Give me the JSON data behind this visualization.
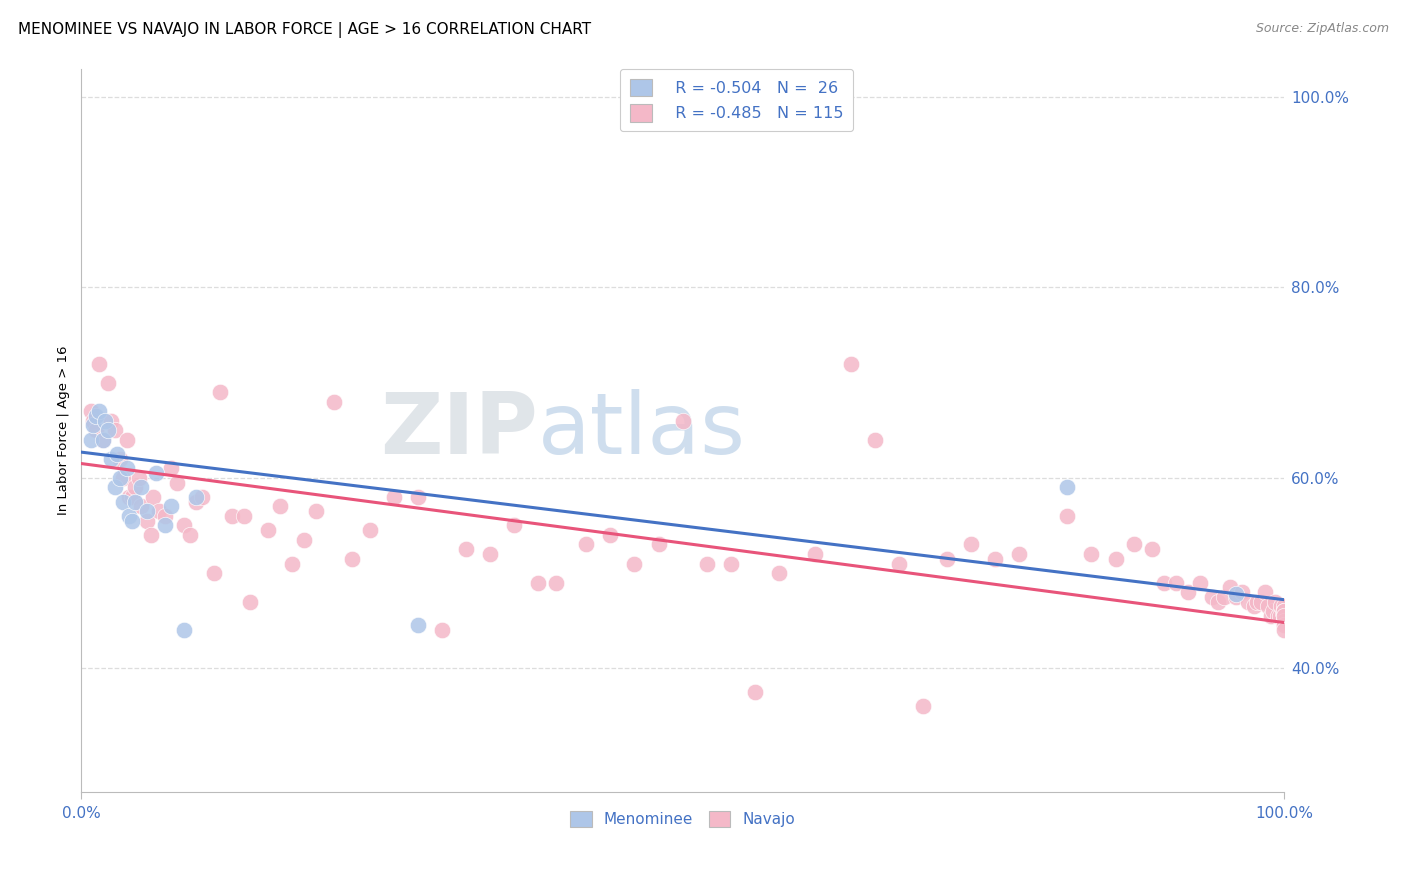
{
  "title": "MENOMINEE VS NAVAJO IN LABOR FORCE | AGE > 16 CORRELATION CHART",
  "source": "Source: ZipAtlas.com",
  "ylabel": "In Labor Force | Age > 16",
  "xlim": [
    0,
    1
  ],
  "ylim": [
    0.27,
    1.03
  ],
  "yticks": [
    0.4,
    0.6,
    0.8,
    1.0
  ],
  "ytick_labels": [
    "40.0%",
    "60.0%",
    "80.0%",
    "100.0%"
  ],
  "xtick_labels": [
    "0.0%",
    "100.0%"
  ],
  "legend_r_menominee": "R = -0.504",
  "legend_n_menominee": "N =  26",
  "legend_r_navajo": "R = -0.485",
  "legend_n_navajo": "N = 115",
  "menominee_color": "#aec6e8",
  "navajo_color": "#f4b8c8",
  "line_menominee_color": "#4472c4",
  "line_navajo_color": "#e8547a",
  "background_color": "#ffffff",
  "grid_color": "#dddddd",
  "tick_label_color": "#4472c4",
  "menominee_x": [
    0.008,
    0.01,
    0.012,
    0.015,
    0.018,
    0.02,
    0.022,
    0.025,
    0.028,
    0.03,
    0.032,
    0.035,
    0.038,
    0.04,
    0.042,
    0.045,
    0.05,
    0.055,
    0.062,
    0.07,
    0.075,
    0.085,
    0.095,
    0.28,
    0.82,
    0.96
  ],
  "menominee_y": [
    0.64,
    0.655,
    0.665,
    0.67,
    0.64,
    0.66,
    0.65,
    0.62,
    0.59,
    0.625,
    0.6,
    0.575,
    0.61,
    0.56,
    0.555,
    0.575,
    0.59,
    0.565,
    0.605,
    0.55,
    0.57,
    0.44,
    0.58,
    0.445,
    0.59,
    0.478
  ],
  "navajo_x": [
    0.008,
    0.01,
    0.012,
    0.015,
    0.018,
    0.022,
    0.025,
    0.028,
    0.032,
    0.035,
    0.038,
    0.04,
    0.042,
    0.045,
    0.048,
    0.05,
    0.055,
    0.058,
    0.06,
    0.065,
    0.07,
    0.075,
    0.08,
    0.085,
    0.09,
    0.095,
    0.1,
    0.11,
    0.115,
    0.125,
    0.135,
    0.14,
    0.155,
    0.165,
    0.175,
    0.185,
    0.195,
    0.21,
    0.225,
    0.24,
    0.26,
    0.28,
    0.3,
    0.32,
    0.34,
    0.36,
    0.38,
    0.395,
    0.42,
    0.44,
    0.46,
    0.48,
    0.5,
    0.52,
    0.54,
    0.56,
    0.58,
    0.61,
    0.64,
    0.66,
    0.68,
    0.7,
    0.72,
    0.74,
    0.76,
    0.78,
    0.82,
    0.84,
    0.86,
    0.875,
    0.89,
    0.9,
    0.91,
    0.92,
    0.93,
    0.94,
    0.945,
    0.95,
    0.955,
    0.96,
    0.965,
    0.97,
    0.975,
    0.978,
    0.981,
    0.984,
    0.987,
    0.989,
    0.991,
    0.993,
    0.995,
    0.997,
    0.998,
    0.999,
    1.0,
    1.0,
    1.0,
    1.0,
    1.0,
    1.0,
    1.0,
    1.0,
    1.0,
    1.0,
    1.0,
    1.0,
    1.0,
    1.0,
    1.0,
    1.0,
    1.0,
    1.0,
    1.0,
    1.0,
    1.0
  ],
  "navajo_y": [
    0.67,
    0.66,
    0.65,
    0.72,
    0.64,
    0.7,
    0.66,
    0.65,
    0.62,
    0.6,
    0.64,
    0.58,
    0.58,
    0.59,
    0.6,
    0.57,
    0.555,
    0.54,
    0.58,
    0.565,
    0.56,
    0.61,
    0.595,
    0.55,
    0.54,
    0.575,
    0.58,
    0.5,
    0.69,
    0.56,
    0.56,
    0.47,
    0.545,
    0.57,
    0.51,
    0.535,
    0.565,
    0.68,
    0.515,
    0.545,
    0.58,
    0.58,
    0.44,
    0.525,
    0.52,
    0.55,
    0.49,
    0.49,
    0.53,
    0.54,
    0.51,
    0.53,
    0.66,
    0.51,
    0.51,
    0.375,
    0.5,
    0.52,
    0.72,
    0.64,
    0.51,
    0.36,
    0.515,
    0.53,
    0.515,
    0.52,
    0.56,
    0.52,
    0.515,
    0.53,
    0.525,
    0.49,
    0.49,
    0.48,
    0.49,
    0.475,
    0.47,
    0.475,
    0.485,
    0.475,
    0.48,
    0.47,
    0.465,
    0.47,
    0.47,
    0.48,
    0.465,
    0.455,
    0.46,
    0.47,
    0.455,
    0.455,
    0.465,
    0.458,
    0.46,
    0.452,
    0.46,
    0.455,
    0.45,
    0.46,
    0.455,
    0.448,
    0.462,
    0.448,
    0.455,
    0.46,
    0.45,
    0.465,
    0.46,
    0.455,
    0.46,
    0.45,
    0.445,
    0.455,
    0.44
  ],
  "line_men_x0": 0.0,
  "line_men_x1": 1.0,
  "line_men_y0": 0.627,
  "line_men_y1": 0.472,
  "line_nav_x0": 0.0,
  "line_nav_x1": 1.0,
  "line_nav_y0": 0.615,
  "line_nav_y1": 0.448
}
